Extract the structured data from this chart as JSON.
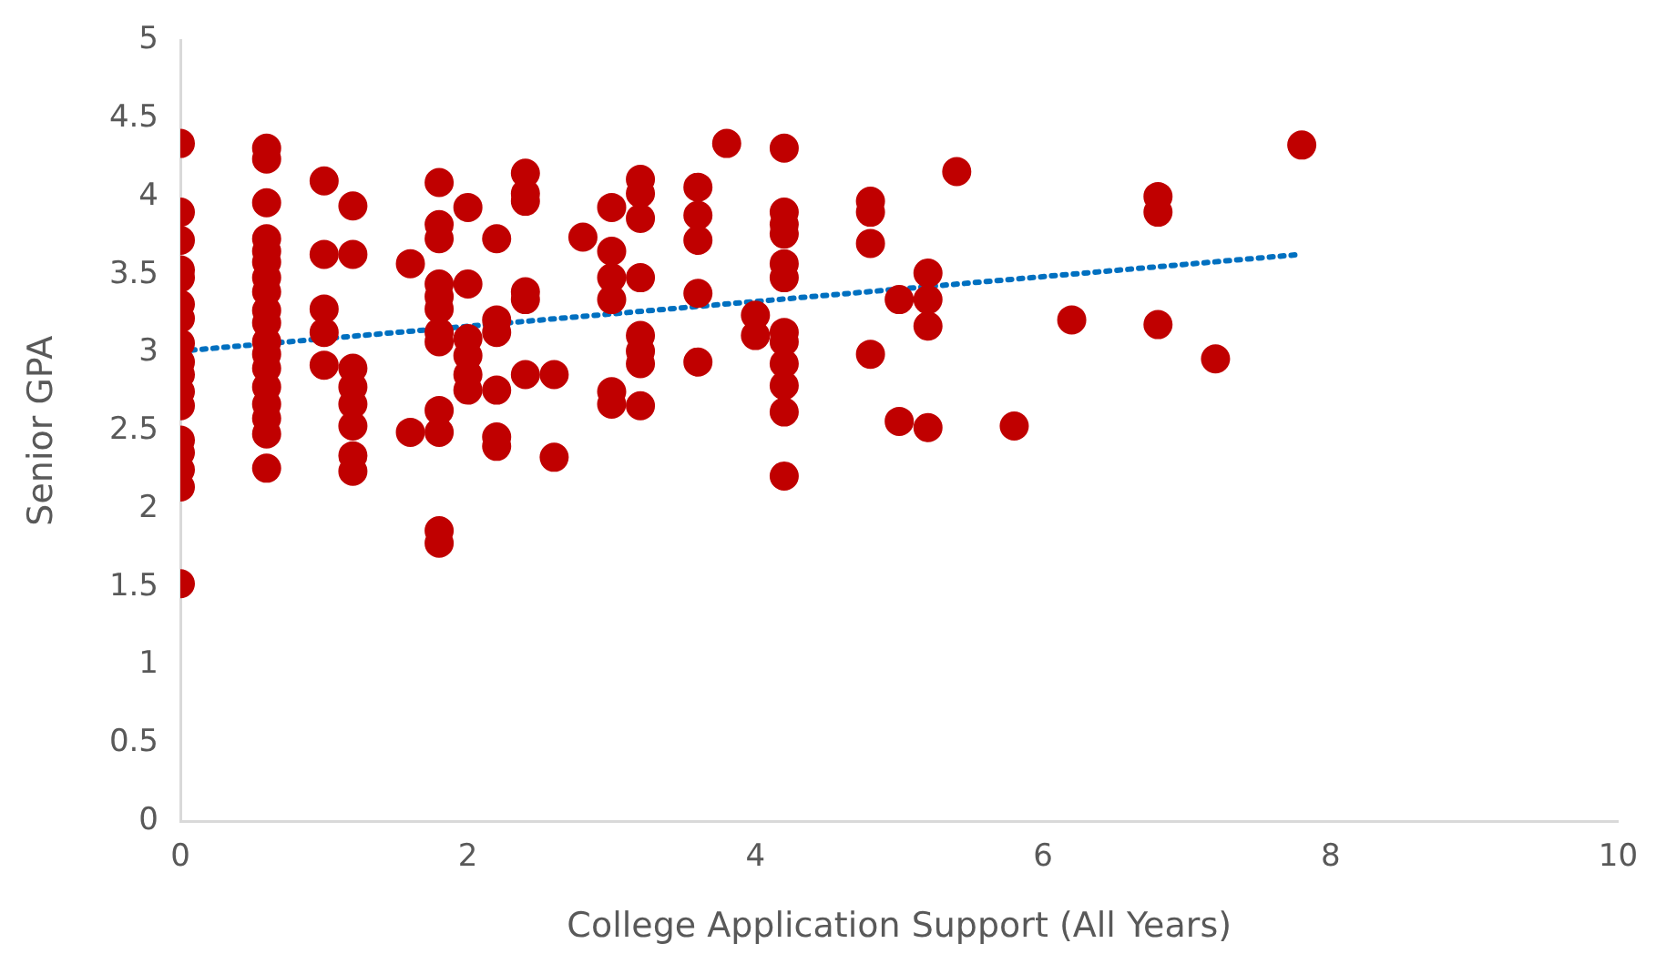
{
  "chart_data": {
    "type": "scatter",
    "xlabel": "College Application Support (All Years)",
    "ylabel": "Senior GPA",
    "xlim": [
      0,
      10
    ],
    "xticks": [
      0,
      2,
      4,
      6,
      8,
      10
    ],
    "ylim": [
      0,
      5
    ],
    "yticks": [
      0,
      0.5,
      1,
      1.5,
      2,
      2.5,
      3,
      3.5,
      4,
      4.5,
      5
    ],
    "grid": false,
    "legend": false,
    "series": [
      {
        "color": "#c00000",
        "marker": "circle",
        "x": [
          0,
          0,
          0,
          0,
          0,
          0,
          0,
          0,
          0,
          0,
          0,
          0,
          0,
          0,
          0,
          0,
          0,
          0.6,
          0.6,
          0.6,
          0.6,
          0.6,
          0.6,
          0.6,
          0.6,
          0.6,
          0.6,
          0.6,
          0.6,
          0.6,
          0.6,
          0.6,
          0.6,
          0.6,
          0.6,
          1,
          1,
          1,
          1,
          1,
          1.2,
          1.2,
          1.2,
          1.2,
          1.2,
          1.2,
          1.2,
          1.2,
          1.6,
          1.6,
          1.8,
          1.8,
          1.8,
          1.8,
          1.8,
          1.8,
          1.8,
          1.8,
          1.8,
          1.8,
          1.8,
          1.8,
          2,
          2,
          2,
          2,
          2,
          2,
          2.2,
          2.2,
          2.2,
          2.2,
          2.2,
          2.2,
          2.4,
          2.4,
          2.4,
          2.4,
          2.4,
          2.4,
          2.6,
          2.6,
          2.8,
          3,
          3,
          3,
          3,
          3,
          3,
          3.2,
          3.2,
          3.2,
          3.2,
          3.2,
          3.2,
          3.2,
          3.2,
          3.6,
          3.6,
          3.6,
          3.6,
          3.6,
          3.8,
          4,
          4,
          4.2,
          4.2,
          4.2,
          4.2,
          4.2,
          4.2,
          4.2,
          4.2,
          4.2,
          4.2,
          4.2,
          4.2,
          4.8,
          4.8,
          4.8,
          4.8,
          5,
          5,
          5.2,
          5.2,
          5.2,
          5.2,
          5.4,
          5.8,
          6.2,
          6.8,
          6.8,
          6.8,
          7.2,
          7.8
        ],
        "values": [
          4.34,
          3.9,
          3.72,
          3.53,
          3.48,
          3.31,
          3.22,
          3.06,
          2.94,
          2.86,
          2.75,
          2.66,
          2.44,
          2.36,
          2.25,
          2.14,
          1.52,
          4.31,
          4.24,
          3.96,
          3.73,
          3.65,
          3.58,
          3.48,
          3.39,
          3.27,
          3.19,
          3.07,
          2.99,
          2.9,
          2.78,
          2.67,
          2.58,
          2.48,
          2.26,
          4.1,
          3.63,
          3.28,
          3.13,
          2.92,
          3.94,
          3.63,
          2.9,
          2.78,
          2.67,
          2.53,
          2.34,
          2.24,
          3.57,
          2.49,
          4.09,
          3.82,
          3.73,
          3.44,
          3.36,
          3.28,
          3.13,
          3.07,
          2.63,
          2.49,
          1.86,
          1.78,
          3.93,
          3.44,
          3.09,
          2.98,
          2.86,
          2.76,
          3.73,
          3.21,
          3.13,
          2.76,
          2.46,
          2.4,
          4.15,
          4.02,
          3.97,
          3.39,
          3.34,
          2.86,
          2.86,
          2.33,
          3.74,
          3.93,
          3.65,
          3.48,
          3.34,
          2.75,
          2.67,
          4.11,
          4.02,
          3.86,
          3.48,
          3.11,
          3.01,
          2.93,
          2.66,
          4.06,
          3.88,
          3.72,
          3.38,
          2.94,
          4.34,
          3.24,
          3.11,
          4.31,
          3.9,
          3.82,
          3.76,
          3.57,
          3.48,
          3.13,
          3.07,
          2.93,
          2.79,
          2.62,
          2.21,
          3.97,
          3.9,
          3.7,
          2.99,
          3.34,
          2.56,
          3.51,
          3.34,
          3.17,
          2.52,
          4.16,
          2.53,
          3.21,
          4,
          3.9,
          3.18,
          2.96,
          4.33
        ]
      },
      {
        "type": "line",
        "color": "#0070c0",
        "line_style": "dotted",
        "marker": "none",
        "x": [
          0,
          7.8
        ],
        "values": [
          3.01,
          3.63
        ]
      }
    ]
  }
}
